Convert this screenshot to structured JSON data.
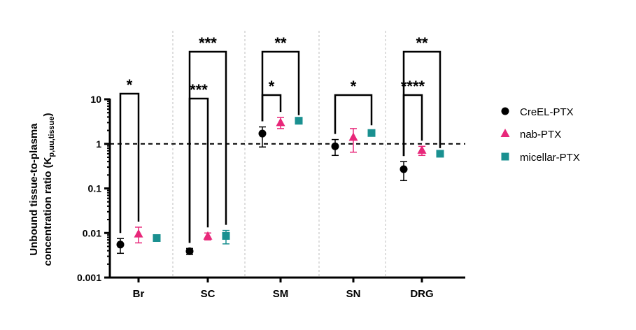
{
  "chart_data": {
    "type": "scatter",
    "title": "",
    "xlabel": "",
    "ylabel_main": "Unbound tissue-to-plasma",
    "ylabel_line2": "concentration ratio (K",
    "ylabel_sub": "p,uu,tissue",
    "ylabel_close": ")",
    "yscale": "log",
    "ylim": [
      0.001,
      10
    ],
    "yticks": [
      {
        "value": 10,
        "label": "10"
      },
      {
        "value": 1,
        "label": "1"
      },
      {
        "value": 0.1,
        "label": "0.1"
      },
      {
        "value": 0.01,
        "label": "0.01"
      },
      {
        "value": 0.001,
        "label": "0.001"
      }
    ],
    "reference_line": 1,
    "categories": [
      "Br",
      "SC",
      "SM",
      "SN",
      "DRG"
    ],
    "legend_position": "right",
    "series": [
      {
        "name": "CreEL-PTX",
        "marker": "circle",
        "color": "#000000",
        "values": [
          0.0055,
          0.0039,
          1.7,
          0.88,
          0.27
        ],
        "err_low": [
          0.0035,
          0.0033,
          0.85,
          0.55,
          0.15
        ],
        "err_high": [
          0.0075,
          0.0045,
          2.4,
          1.25,
          0.4
        ]
      },
      {
        "name": "nab-PTX",
        "marker": "triangle",
        "color": "#e8287a",
        "values": [
          0.0095,
          0.0085,
          3.0,
          1.4,
          0.72
        ],
        "err_low": [
          0.006,
          0.007,
          2.2,
          0.65,
          0.55
        ],
        "err_high": [
          0.0135,
          0.01,
          3.9,
          2.2,
          0.88
        ]
      },
      {
        "name": "micellar-PTX",
        "marker": "square",
        "color": "#1a9090",
        "values": [
          0.0077,
          0.0086,
          3.3,
          1.75,
          0.6
        ],
        "err_low": [
          0.0077,
          0.0057,
          3.3,
          1.55,
          0.6
        ],
        "err_high": [
          0.0077,
          0.0114,
          3.3,
          1.95,
          0.6
        ]
      }
    ],
    "significance": [
      {
        "category": "Br",
        "from": "CreEL-PTX",
        "to": "nab-PTX",
        "label": "*"
      },
      {
        "category": "SC",
        "from": "CreEL-PTX",
        "to": "nab-PTX",
        "label": "***"
      },
      {
        "category": "SC",
        "from": "CreEL-PTX",
        "to": "micellar-PTX",
        "label": "***"
      },
      {
        "category": "SM",
        "from": "CreEL-PTX",
        "to": "nab-PTX",
        "label": "*"
      },
      {
        "category": "SM",
        "from": "CreEL-PTX",
        "to": "micellar-PTX",
        "label": "**"
      },
      {
        "category": "SN",
        "from": "CreEL-PTX",
        "to": "micellar-PTX",
        "label": "*"
      },
      {
        "category": "DRG",
        "from": "CreEL-PTX",
        "to": "nab-PTX",
        "label": "****"
      },
      {
        "category": "DRG",
        "from": "CreEL-PTX",
        "to": "micellar-PTX",
        "label": "**"
      }
    ]
  }
}
